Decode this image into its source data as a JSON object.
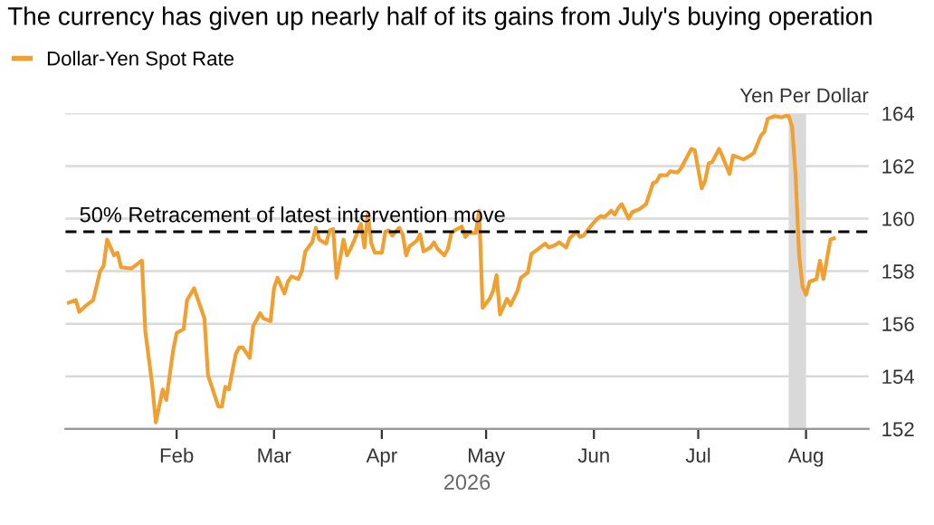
{
  "chart_data": {
    "type": "line",
    "title": "The currency has given up nearly half of its gains from July's buying operation",
    "ylabel": "Yen Per Dollar",
    "xlabel": "2026",
    "legend": "top left",
    "grid": "y",
    "xlim": [
      "2025-12-31",
      "2026-08-19"
    ],
    "xticks": [
      {
        "value": "2026-02-01",
        "label": "Feb"
      },
      {
        "value": "2026-03-01",
        "label": "Mar"
      },
      {
        "value": "2026-04-01",
        "label": "Apr"
      },
      {
        "value": "2026-05-01",
        "label": "May"
      },
      {
        "value": "2026-06-01",
        "label": "Jun"
      },
      {
        "value": "2026-07-01",
        "label": "Jul"
      },
      {
        "value": "2026-08-01",
        "label": "Aug"
      }
    ],
    "ylim": [
      152,
      164
    ],
    "yticks": [
      152,
      154,
      156,
      158,
      160,
      162,
      164
    ],
    "ref_lines": [
      {
        "axis": "y",
        "value": 159.5,
        "label": "50% Retracement of latest intervention move",
        "color": "#000000",
        "line_style": "dashed"
      }
    ],
    "bands": [
      {
        "axis": "x",
        "from": "2026-07-27",
        "to": "2026-08-01",
        "color": "#d9d9d9"
      }
    ],
    "series": [
      {
        "name": "Dollar-Yen Spot Rate",
        "color": "#f0a030",
        "x": [
          "2026-01-01",
          "2026-01-03",
          "2026-01-04",
          "2026-01-06",
          "2026-01-08",
          "2026-01-10",
          "2026-01-11",
          "2026-01-12",
          "2026-01-14",
          "2026-01-15",
          "2026-01-16",
          "2026-01-19",
          "2026-01-22",
          "2026-01-23",
          "2026-01-25",
          "2026-01-26",
          "2026-01-28",
          "2026-01-29",
          "2026-01-31",
          "2026-02-01",
          "2026-02-03",
          "2026-02-04",
          "2026-02-06",
          "2026-02-09",
          "2026-02-10",
          "2026-02-12",
          "2026-02-13",
          "2026-02-14",
          "2026-02-15",
          "2026-02-16",
          "2026-02-18",
          "2026-02-19",
          "2026-02-20",
          "2026-02-22",
          "2026-02-23",
          "2026-02-25",
          "2026-02-26",
          "2026-02-28",
          "2026-03-01",
          "2026-03-02",
          "2026-03-04",
          "2026-03-05",
          "2026-03-06",
          "2026-03-08",
          "2026-03-09",
          "2026-03-10",
          "2026-03-12",
          "2026-03-13",
          "2026-03-14",
          "2026-03-16",
          "2026-03-17",
          "2026-03-18",
          "2026-03-19",
          "2026-03-21",
          "2026-03-22",
          "2026-03-23",
          "2026-03-24",
          "2026-03-26",
          "2026-03-27",
          "2026-03-28",
          "2026-03-29",
          "2026-03-30",
          "2026-04-01",
          "2026-04-02",
          "2026-04-03",
          "2026-04-04",
          "2026-04-06",
          "2026-04-07",
          "2026-04-08",
          "2026-04-09",
          "2026-04-11",
          "2026-04-12",
          "2026-04-13",
          "2026-04-15",
          "2026-04-16",
          "2026-04-17",
          "2026-04-19",
          "2026-04-20",
          "2026-04-21",
          "2026-04-22",
          "2026-04-24",
          "2026-04-25",
          "2026-04-26",
          "2026-04-28",
          "2026-04-29",
          "2026-04-30",
          "2026-05-02",
          "2026-05-03",
          "2026-05-04",
          "2026-05-05",
          "2026-05-07",
          "2026-05-08",
          "2026-05-10",
          "2026-05-11",
          "2026-05-13",
          "2026-05-14",
          "2026-05-16",
          "2026-05-18",
          "2026-05-19",
          "2026-05-21",
          "2026-05-22",
          "2026-05-24",
          "2026-05-25",
          "2026-05-27",
          "2026-05-28",
          "2026-05-29",
          "2026-05-31",
          "2026-06-02",
          "2026-06-03",
          "2026-06-04",
          "2026-06-06",
          "2026-06-07",
          "2026-06-08",
          "2026-06-09",
          "2026-06-11",
          "2026-06-12",
          "2026-06-14",
          "2026-06-16",
          "2026-06-18",
          "2026-06-19",
          "2026-06-20",
          "2026-06-22",
          "2026-06-23",
          "2026-06-25",
          "2026-06-26",
          "2026-06-27",
          "2026-06-29",
          "2026-06-30",
          "2026-07-02",
          "2026-07-03",
          "2026-07-04",
          "2026-07-05",
          "2026-07-07",
          "2026-07-08",
          "2026-07-10",
          "2026-07-11",
          "2026-07-13",
          "2026-07-14",
          "2026-07-16",
          "2026-07-17",
          "2026-07-19",
          "2026-07-20",
          "2026-07-21",
          "2026-07-23",
          "2026-07-25",
          "2026-07-26",
          "2026-07-27",
          "2026-07-28",
          "2026-07-29",
          "2026-07-30",
          "2026-07-31",
          "2026-08-01",
          "2026-08-02",
          "2026-08-04",
          "2026-08-05",
          "2026-08-06",
          "2026-08-08",
          "2026-08-09"
        ],
        "values": [
          156.8,
          156.9,
          156.45,
          156.7,
          156.9,
          158.0,
          158.2,
          159.2,
          158.6,
          158.7,
          158.15,
          158.1,
          158.4,
          155.7,
          153.65,
          152.25,
          153.5,
          153.1,
          155.0,
          155.65,
          155.8,
          156.9,
          157.35,
          156.2,
          154.05,
          153.25,
          152.85,
          152.85,
          153.6,
          153.5,
          154.85,
          155.1,
          155.1,
          154.7,
          155.9,
          156.4,
          156.2,
          156.1,
          157.35,
          157.75,
          157.15,
          157.6,
          157.8,
          157.7,
          158.0,
          158.75,
          159.1,
          159.65,
          159.2,
          159.05,
          159.55,
          159.6,
          157.75,
          159.2,
          158.6,
          158.85,
          159.15,
          159.8,
          158.9,
          160.2,
          159.05,
          158.7,
          158.7,
          159.5,
          159.55,
          159.35,
          159.65,
          159.4,
          158.6,
          158.95,
          159.15,
          159.4,
          158.75,
          158.9,
          159.1,
          158.85,
          158.6,
          158.85,
          159.45,
          159.55,
          159.7,
          159.3,
          159.45,
          159.45,
          160.3,
          156.6,
          156.95,
          157.25,
          157.85,
          156.35,
          156.95,
          156.7,
          157.25,
          157.75,
          157.95,
          158.65,
          158.85,
          159.05,
          158.9,
          159.0,
          159.1,
          158.9,
          159.25,
          159.5,
          159.3,
          159.35,
          159.7,
          160.0,
          160.1,
          160.05,
          160.3,
          160.15,
          160.4,
          160.55,
          160.0,
          160.25,
          160.35,
          160.55,
          161.35,
          161.4,
          161.65,
          161.65,
          161.8,
          161.75,
          161.9,
          162.15,
          162.65,
          162.6,
          161.15,
          161.45,
          162.1,
          162.15,
          162.65,
          162.35,
          161.7,
          162.4,
          162.3,
          162.25,
          162.4,
          162.5,
          163.15,
          163.3,
          163.8,
          163.9,
          163.85,
          163.9,
          163.9,
          163.5,
          161.65,
          158.65,
          157.4,
          157.1,
          157.6,
          157.7,
          158.4,
          157.7,
          159.2,
          159.25
        ]
      }
    ]
  }
}
